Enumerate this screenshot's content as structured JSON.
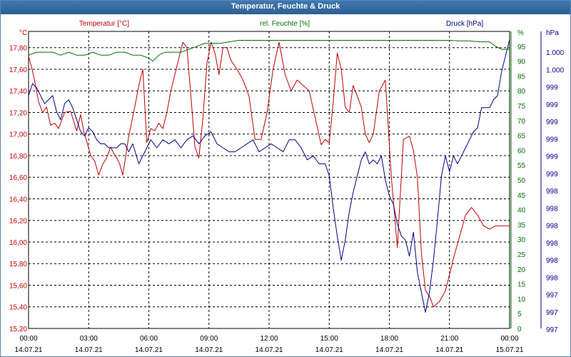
{
  "window": {
    "title": "Temperatur, Feuchte & Druck"
  },
  "colors": {
    "temperature": "#c00000",
    "humidity": "#007000",
    "pressure": "#00008b",
    "titlebar": "#2f6699",
    "grid": "#000000"
  },
  "chart_data": {
    "type": "line",
    "title": "Temperatur, Feuchte & Druck",
    "grid": true,
    "x_ticks": [
      {
        "time": "00:00",
        "date": "14.07.21"
      },
      {
        "time": "03:00",
        "date": "14.07.21"
      },
      {
        "time": "06:00",
        "date": "14.07.21"
      },
      {
        "time": "09:00",
        "date": "14.07.21"
      },
      {
        "time": "12:00",
        "date": "14.07.21"
      },
      {
        "time": "15:00",
        "date": "14.07.21"
      },
      {
        "time": "18:00",
        "date": "14.07.21"
      },
      {
        "time": "21:00",
        "date": "14.07.21"
      },
      {
        "time": "00:00",
        "date": "15.07.21"
      }
    ],
    "x_range_hours": [
      0,
      24
    ],
    "axes": {
      "temperature": {
        "label": "Temperatur [°C]",
        "unit": "°C",
        "range": [
          15.2,
          17.95
        ],
        "ticks": [
          "17,80",
          "17,60",
          "17,40",
          "17,20",
          "17,00",
          "16,80",
          "16,60",
          "16,40",
          "16,20",
          "16,00",
          "15,80",
          "15,60",
          "15,40",
          "15,20"
        ]
      },
      "humidity": {
        "label": "rel. Feuchte [%]",
        "unit": "%",
        "range": [
          0,
          100
        ],
        "ticks": [
          "95",
          "90",
          "85",
          "80",
          "75",
          "70",
          "65",
          "60",
          "55",
          "50",
          "45",
          "40",
          "35",
          "30",
          "25",
          "20",
          "15",
          "10",
          "5",
          "0"
        ]
      },
      "pressure": {
        "label": "Druck [hPa]",
        "unit": "hPa",
        "range": [
          997.0,
          1000.7
        ],
        "ticks": [
          "1.000",
          "1.000",
          "999",
          "999",
          "999",
          "999",
          "999",
          "999",
          "998",
          "998",
          "998",
          "998",
          "998",
          "998",
          "997",
          "997",
          "997"
        ]
      }
    },
    "series": [
      {
        "name": "Temperatur [°C]",
        "axis": "temperature",
        "x": [
          0,
          0.15,
          0.3,
          0.5,
          0.7,
          0.9,
          1.1,
          1.3,
          1.5,
          1.8,
          2.1,
          2.4,
          2.6,
          2.75,
          2.95,
          3.1,
          3.3,
          3.5,
          3.7,
          3.9,
          4.1,
          4.25,
          4.4,
          4.55,
          4.7,
          5.0,
          5.3,
          5.5,
          5.7,
          5.9,
          6.1,
          6.3,
          6.5,
          6.7,
          6.9,
          7.1,
          7.3,
          7.5,
          7.7,
          7.9,
          8.1,
          8.3,
          8.5,
          8.7,
          8.9,
          9.1,
          9.3,
          9.5,
          9.7,
          9.9,
          10.1,
          10.4,
          10.7,
          11.0,
          11.3,
          11.6,
          11.9,
          12.2,
          12.5,
          12.8,
          13.1,
          13.4,
          13.7,
          14.0,
          14.3,
          14.6,
          14.8,
          15.0,
          15.2,
          15.4,
          15.6,
          15.8,
          16.0,
          16.2,
          16.4,
          16.6,
          16.8,
          17.0,
          17.2,
          17.5,
          17.8,
          18.1,
          18.4,
          18.7,
          19.0,
          19.2,
          19.4,
          19.6,
          19.8,
          20.0,
          20.2,
          20.5,
          20.8,
          21.0,
          21.2,
          21.5,
          21.8,
          22.1,
          22.4,
          22.7,
          23.0,
          23.3,
          23.6,
          23.9,
          24.0
        ],
        "y": [
          17.72,
          17.62,
          17.5,
          17.3,
          17.2,
          17.25,
          17.08,
          17.1,
          17.05,
          17.2,
          17.21,
          17.03,
          17.18,
          17.03,
          16.9,
          16.8,
          16.75,
          16.62,
          16.72,
          16.78,
          16.88,
          16.82,
          16.78,
          16.72,
          16.62,
          16.98,
          17.25,
          17.45,
          17.6,
          16.92,
          17.05,
          17.03,
          17.1,
          17.05,
          17.2,
          17.4,
          17.55,
          17.7,
          17.85,
          17.8,
          17.35,
          16.88,
          16.78,
          17.15,
          17.65,
          17.85,
          17.75,
          17.55,
          17.8,
          17.8,
          17.68,
          17.6,
          17.5,
          17.35,
          16.95,
          16.95,
          17.2,
          17.6,
          17.85,
          17.55,
          17.4,
          17.5,
          17.45,
          17.4,
          17.15,
          16.9,
          16.95,
          16.92,
          17.3,
          17.75,
          17.6,
          17.25,
          17.2,
          17.45,
          17.35,
          17.25,
          17.0,
          16.92,
          17.0,
          17.4,
          17.5,
          16.6,
          15.95,
          16.95,
          16.98,
          16.85,
          16.6,
          15.9,
          15.55,
          15.5,
          15.4,
          15.45,
          15.55,
          15.7,
          15.85,
          16.05,
          16.25,
          16.32,
          16.25,
          16.15,
          16.12,
          16.15,
          16.15,
          16.15,
          16.15
        ]
      },
      {
        "name": "rel. Feuchte [%]",
        "axis": "humidity",
        "x": [
          0,
          0.4,
          0.8,
          1.2,
          1.6,
          2.0,
          2.4,
          2.8,
          3.2,
          3.6,
          4.0,
          4.4,
          4.8,
          5.2,
          5.6,
          6.0,
          6.2,
          6.5,
          6.8,
          7.2,
          7.6,
          8.0,
          8.4,
          8.8,
          9.2,
          9.6,
          10.0,
          10.5,
          11.0,
          11.5,
          12.0,
          12.5,
          13.0,
          13.5,
          14.0,
          14.5,
          15.0,
          15.5,
          16.0,
          16.5,
          17.0,
          17.5,
          18.0,
          18.5,
          19.0,
          19.5,
          20.0,
          20.5,
          21.0,
          21.5,
          22.0,
          22.5,
          23.0,
          23.3,
          23.6,
          24.0
        ],
        "y": [
          92,
          93,
          93,
          93,
          92,
          93,
          92,
          92,
          93,
          92,
          92,
          93,
          93,
          92,
          92,
          91,
          90,
          92,
          93,
          93,
          93,
          94,
          95,
          96,
          96,
          96,
          96.5,
          97,
          97,
          97,
          97,
          97,
          97,
          97,
          97,
          97,
          97,
          97,
          97,
          97,
          97,
          97,
          97,
          97,
          97,
          97,
          97,
          97,
          97,
          96.8,
          96.8,
          96.5,
          96.5,
          95,
          94,
          94
        ]
      },
      {
        "name": "Druck [hPa]",
        "axis": "pressure",
        "x": [
          0,
          0.2,
          0.4,
          0.6,
          0.8,
          1.0,
          1.2,
          1.4,
          1.6,
          1.8,
          2.0,
          2.2,
          2.4,
          2.6,
          2.8,
          3.0,
          3.2,
          3.4,
          3.6,
          3.8,
          4.0,
          4.2,
          4.4,
          4.6,
          4.8,
          5.0,
          5.2,
          5.5,
          5.8,
          6.1,
          6.4,
          6.7,
          7.0,
          7.3,
          7.6,
          7.9,
          8.2,
          8.5,
          8.8,
          9.1,
          9.4,
          9.7,
          10.0,
          10.3,
          10.6,
          10.9,
          11.2,
          11.5,
          11.8,
          12.1,
          12.4,
          12.7,
          13.0,
          13.3,
          13.6,
          13.9,
          14.2,
          14.5,
          14.8,
          15.0,
          15.2,
          15.4,
          15.6,
          15.8,
          16.0,
          16.2,
          16.4,
          16.6,
          16.8,
          17.0,
          17.2,
          17.4,
          17.6,
          17.8,
          18.0,
          18.2,
          18.4,
          18.6,
          18.8,
          19.0,
          19.2,
          19.4,
          19.6,
          19.8,
          20.0,
          20.2,
          20.4,
          20.6,
          20.8,
          21.0,
          21.2,
          21.4,
          21.6,
          21.8,
          22.0,
          22.2,
          22.4,
          22.6,
          22.8,
          23.0,
          23.2,
          23.4,
          23.6,
          23.8,
          24.0
        ],
        "y": [
          999.9,
          1000.05,
          1000.0,
          999.9,
          999.8,
          999.85,
          999.9,
          999.7,
          999.6,
          999.8,
          999.85,
          999.75,
          999.6,
          999.45,
          999.4,
          999.5,
          999.45,
          999.35,
          999.3,
          999.3,
          999.25,
          999.25,
          999.25,
          999.3,
          999.3,
          999.2,
          999.3,
          999.05,
          999.2,
          999.35,
          999.25,
          999.35,
          999.3,
          999.35,
          999.25,
          999.35,
          999.4,
          999.3,
          999.4,
          999.45,
          999.3,
          999.25,
          999.2,
          999.2,
          999.25,
          999.3,
          999.35,
          999.2,
          999.25,
          999.3,
          999.25,
          999.2,
          999.35,
          999.35,
          999.25,
          999.1,
          999.15,
          999.05,
          999.05,
          998.9,
          998.5,
          998.15,
          997.85,
          998.1,
          998.45,
          998.7,
          998.9,
          999.1,
          999.2,
          999.05,
          999.1,
          999.05,
          999.15,
          998.85,
          998.65,
          998.55,
          998.3,
          998.15,
          998.1,
          997.9,
          998.2,
          997.7,
          997.45,
          997.2,
          997.45,
          997.85,
          998.35,
          998.9,
          999.15,
          998.95,
          999.15,
          999.05,
          999.15,
          999.25,
          999.35,
          999.45,
          999.5,
          999.75,
          999.75,
          999.75,
          999.85,
          999.9,
          1000.2,
          1000.4,
          1000.6
        ]
      }
    ]
  }
}
